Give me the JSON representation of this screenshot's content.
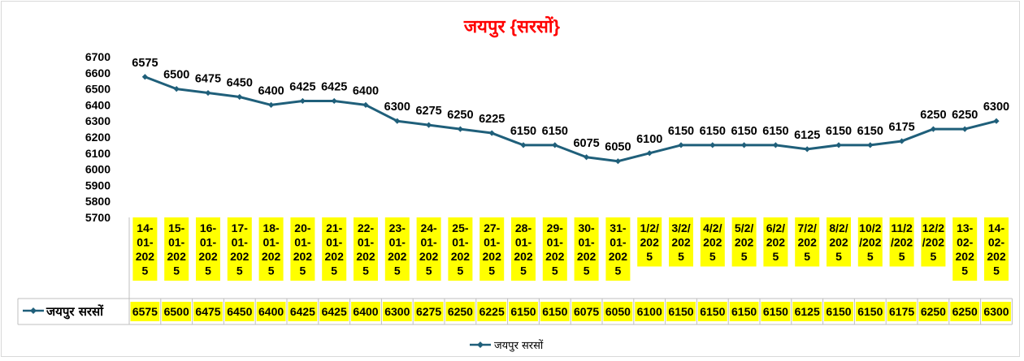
{
  "chart_data": {
    "type": "line",
    "title": "जयपुर {सरसों}",
    "title_color": "#ff0000",
    "series_color": "#1f5f7a",
    "highlight_color": "#ffff00",
    "ylim": [
      5700,
      6700
    ],
    "ystep": 100,
    "yticks": [
      "5700",
      "5800",
      "5900",
      "6000",
      "6100",
      "6200",
      "6300",
      "6400",
      "6500",
      "6600",
      "6700"
    ],
    "grid": false,
    "legend_position": "bottom",
    "data_table": true,
    "categories": [
      [
        "14-",
        "01-",
        "202",
        "5"
      ],
      [
        "15-",
        "01-",
        "202",
        "5"
      ],
      [
        "16-",
        "01-",
        "202",
        "5"
      ],
      [
        "17-",
        "01-",
        "202",
        "5"
      ],
      [
        "18-",
        "01-",
        "202",
        "5"
      ],
      [
        "20-",
        "01-",
        "202",
        "5"
      ],
      [
        "21-",
        "01-",
        "202",
        "5"
      ],
      [
        "22-",
        "01-",
        "202",
        "5"
      ],
      [
        "23-",
        "01-",
        "202",
        "5"
      ],
      [
        "24-",
        "01-",
        "202",
        "5"
      ],
      [
        "25-",
        "01-",
        "202",
        "5"
      ],
      [
        "27-",
        "01-",
        "202",
        "5"
      ],
      [
        "28-",
        "01-",
        "202",
        "5"
      ],
      [
        "29-",
        "01-",
        "202",
        "5"
      ],
      [
        "30-",
        "01-",
        "202",
        "5"
      ],
      [
        "31-",
        "01-",
        "202",
        "5"
      ],
      [
        "1/2/",
        "202",
        "5"
      ],
      [
        "3/2/",
        "202",
        "5"
      ],
      [
        "4/2/",
        "202",
        "5"
      ],
      [
        "5/2/",
        "202",
        "5"
      ],
      [
        "6/2/",
        "202",
        "5"
      ],
      [
        "7/2/",
        "202",
        "5"
      ],
      [
        "8/2/",
        "202",
        "5"
      ],
      [
        "10/2",
        "/202",
        "5"
      ],
      [
        "11/2",
        "/202",
        "5"
      ],
      [
        "12/2",
        "/202",
        "5"
      ],
      [
        "13-",
        "02-",
        "202",
        "5"
      ],
      [
        "14-",
        "02-",
        "202",
        "5"
      ]
    ],
    "series": [
      {
        "name": "जयपुर सरसों",
        "values": [
          6575,
          6500,
          6475,
          6450,
          6400,
          6425,
          6425,
          6400,
          6300,
          6275,
          6250,
          6225,
          6150,
          6150,
          6075,
          6050,
          6100,
          6150,
          6150,
          6150,
          6150,
          6125,
          6150,
          6150,
          6175,
          6250,
          6250,
          6300
        ]
      }
    ]
  }
}
